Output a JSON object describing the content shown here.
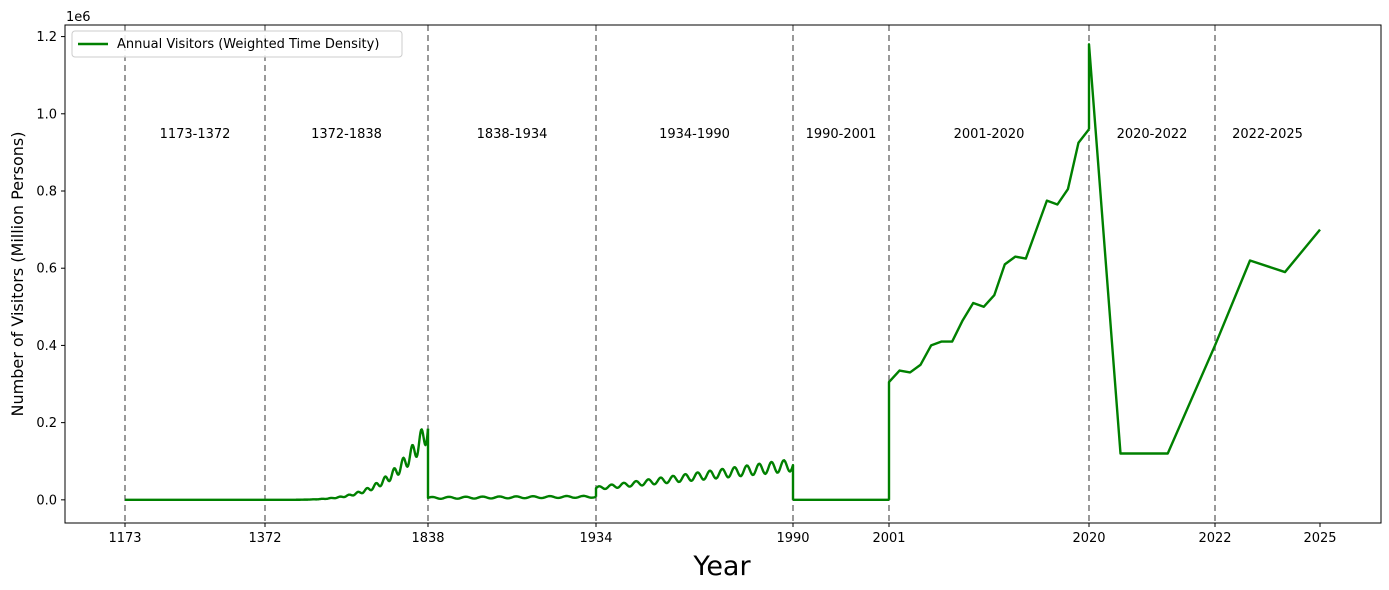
{
  "chart_data": {
    "type": "line",
    "xlabel": "Year",
    "ylabel": "Number of Visitors (Million Persons)",
    "y_offset_label": "1e6",
    "ylim": [
      -60000,
      1230000
    ],
    "y_ticks": [
      "0.0",
      "0.2",
      "0.4",
      "0.6",
      "0.8",
      "1.0",
      "1.2"
    ],
    "y_tick_values": [
      0,
      200000,
      400000,
      600000,
      800000,
      1000000,
      1200000
    ],
    "x_ticks": [
      "1173",
      "1372",
      "1838",
      "1934",
      "1990",
      "2001",
      "2020",
      "2022",
      "2025"
    ],
    "grid": false,
    "legend_position": "top-left",
    "line_color": "#008000",
    "boundary_color": "#808080",
    "series": [
      {
        "name": "Annual Visitors (Weighted Time Density)",
        "segments": [
          {
            "era": "1173-1372",
            "x": [
              1173,
              1372
            ],
            "y": [
              0,
              0
            ]
          },
          {
            "era": "1372-1838",
            "x": [
              1372,
              1838
            ],
            "y": [
              0,
              200000
            ],
            "shape": "exponential-oscillating"
          },
          {
            "era": "1838-1934",
            "x": [
              1838,
              1934
            ],
            "y": [
              5000,
              8000
            ],
            "shape": "flat-oscillating"
          },
          {
            "era": "1934-1990",
            "x": [
              1934,
              1990
            ],
            "y": [
              30000,
              90000
            ],
            "shape": "rising-oscillating"
          },
          {
            "era": "1990-2001",
            "x": [
              1990,
              2001
            ],
            "y": [
              0,
              0
            ]
          },
          {
            "era": "2001-2020",
            "x": [
              2001,
              2002,
              2003,
              2004,
              2005,
              2006,
              2007,
              2008,
              2009,
              2010,
              2011,
              2012,
              2013,
              2014,
              2015,
              2016,
              2017,
              2018,
              2019,
              2020
            ],
            "y": [
              305000,
              335000,
              330000,
              350000,
              400000,
              410000,
              410000,
              465000,
              510000,
              500000,
              530000,
              610000,
              630000,
              625000,
              700000,
              775000,
              765000,
              805000,
              925000,
              960000
            ]
          },
          {
            "era": "2020-2022",
            "x": [
              2020,
              2020.5,
              2021.25,
              2022
            ],
            "y": [
              1180000,
              120000,
              120000,
              400000
            ]
          },
          {
            "era": "2022-2025",
            "x": [
              2022,
              2023,
              2024,
              2025
            ],
            "y": [
              400000,
              620000,
              590000,
              700000
            ]
          }
        ]
      }
    ],
    "eras": [
      "1173-1372",
      "1372-1838",
      "1838-1934",
      "1934-1990",
      "1990-2001",
      "2001-2020",
      "2020-2022",
      "2022-2025"
    ]
  }
}
